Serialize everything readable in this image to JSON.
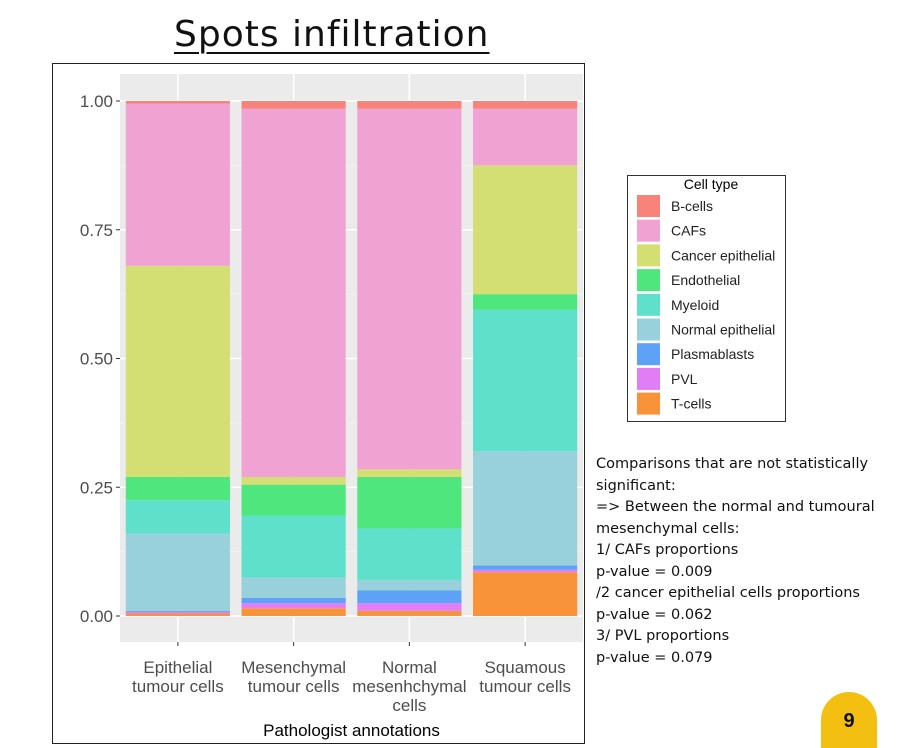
{
  "slide": {
    "title": "Spots infiltration",
    "page_number": "9"
  },
  "notes": [
    "Comparisons that are not statistically",
    "significant:",
    "=> Between the normal and tumoural",
    "mesenchymal cells:",
    "1/ CAFs proportions",
    "p-value = 0.009",
    "/2 cancer epithelial cells proportions",
    "p-value = 0.062",
    "3/ PVL proportions",
    "p-value = 0.079"
  ],
  "chart_data": {
    "type": "bar",
    "stacked": true,
    "xlabel": "Pathologist annotations",
    "ylabel": "",
    "ylim": [
      0,
      1
    ],
    "yticks": [
      "0.00",
      "0.25",
      "0.50",
      "0.75",
      "1.00"
    ],
    "grid": true,
    "legend_title": "Cell type",
    "legend_position": "right",
    "categories": [
      [
        "Epithelial",
        "tumour cells"
      ],
      [
        "Mesenchymal",
        "tumour cells"
      ],
      [
        "Normal",
        "mesenhchymal",
        "cells"
      ],
      [
        "Squamous",
        "tumour cells"
      ]
    ],
    "series": [
      {
        "name": "T-cells",
        "color": "#F8933A",
        "values": [
          0.005,
          0.015,
          0.01,
          0.085
        ]
      },
      {
        "name": "PVL",
        "color": "#E27EF5",
        "values": [
          0.003,
          0.01,
          0.015,
          0.005
        ]
      },
      {
        "name": "Plasmablasts",
        "color": "#5EA2F7",
        "values": [
          0.002,
          0.01,
          0.025,
          0.008
        ]
      },
      {
        "name": "Normal epithelial",
        "color": "#98D0DC",
        "values": [
          0.15,
          0.04,
          0.02,
          0.222
        ]
      },
      {
        "name": "Myeloid",
        "color": "#5FE0CB",
        "values": [
          0.065,
          0.12,
          0.1,
          0.275
        ]
      },
      {
        "name": "Endothelial",
        "color": "#4FE67D",
        "values": [
          0.045,
          0.06,
          0.1,
          0.03
        ]
      },
      {
        "name": "Cancer epithelial",
        "color": "#D3DE73",
        "values": [
          0.41,
          0.015,
          0.015,
          0.25
        ]
      },
      {
        "name": "CAFs",
        "color": "#F0A3D3",
        "values": [
          0.315,
          0.715,
          0.7,
          0.11
        ]
      },
      {
        "name": "B-cells",
        "color": "#F7837A",
        "values": [
          0.005,
          0.015,
          0.015,
          0.015
        ]
      }
    ]
  }
}
